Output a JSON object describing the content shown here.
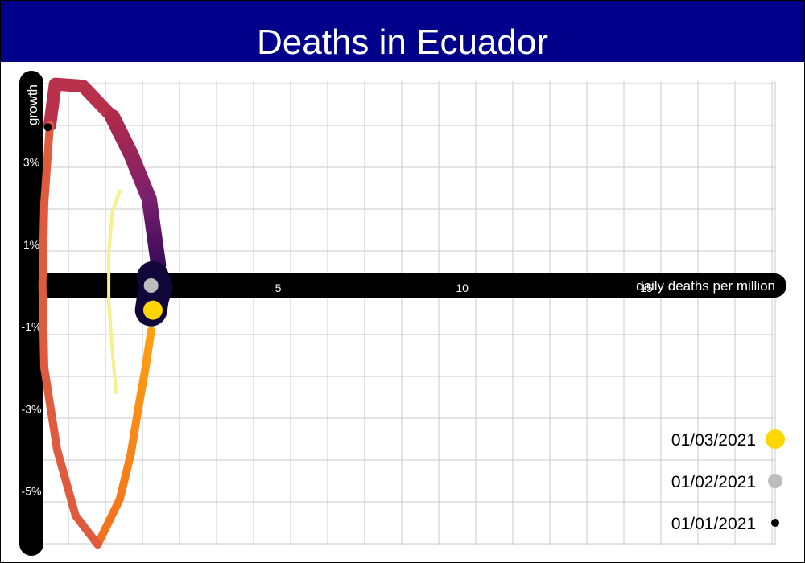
{
  "title": "Deaths in Ecuador",
  "chart_data": {
    "type": "scatter",
    "title": "Deaths in Ecuador",
    "xlabel": "daily deaths per million",
    "ylabel": "growth",
    "xlim": [
      -1.7,
      18.5
    ],
    "ylim": [
      -6.3,
      5.4
    ],
    "xticks": [
      {
        "value": 5,
        "label": "5"
      },
      {
        "value": 10,
        "label": "10"
      },
      {
        "value": 15,
        "label": "15"
      }
    ],
    "yticks": [
      {
        "value": 3,
        "label": "3%"
      },
      {
        "value": 1,
        "label": "1%"
      },
      {
        "value": -1,
        "label": "-1%"
      },
      {
        "value": -3,
        "label": "-3%"
      },
      {
        "value": -5,
        "label": "-5%"
      }
    ],
    "grid": true,
    "legend_position": "bottom-right",
    "series": [
      {
        "color": "#f5f18a",
        "points": [
          [
            0.7,
            2.3
          ],
          [
            0.5,
            1.8
          ],
          [
            0.4,
            0.8
          ],
          [
            0.4,
            -0.4
          ],
          [
            0.5,
            -1.6
          ],
          [
            0.6,
            -2.6
          ]
        ]
      },
      {
        "color": "#e05a3e",
        "points": [
          [
            -1.2,
            3.9
          ],
          [
            -1.05,
            4.9
          ],
          [
            -0.3,
            4.85
          ],
          [
            0.5,
            4.1
          ],
          [
            1.0,
            3.2
          ],
          [
            1.5,
            2.1
          ],
          [
            1.75,
            0.5
          ],
          [
            1.7,
            -0.5
          ],
          [
            1.55,
            -1.1
          ],
          [
            1.4,
            -2.0
          ],
          [
            1.2,
            -3.0
          ],
          [
            1.0,
            -4.1
          ],
          [
            0.7,
            -5.2
          ],
          [
            0.1,
            -6.3
          ],
          [
            -0.5,
            -5.6
          ],
          [
            -1.0,
            -4.0
          ],
          [
            -1.35,
            -2.0
          ],
          [
            -1.4,
            0.0
          ],
          [
            -1.35,
            2.0
          ],
          [
            -1.2,
            3.9
          ]
        ]
      },
      {
        "color": "#12073a",
        "points": [
          [
            1.6,
            0.2
          ],
          [
            1.7,
            -0.05
          ],
          [
            1.6,
            -0.3
          ],
          [
            1.55,
            -0.6
          ]
        ]
      }
    ],
    "highlights": [
      {
        "date": "01/03/2021",
        "color": "#ffd700",
        "x": 1.6,
        "y": -0.6
      },
      {
        "date": "01/02/2021",
        "color": "#bdbdbd",
        "x": 1.55,
        "y": 0.0
      },
      {
        "date": "01/01/2021",
        "color": "#000000",
        "x": -1.25,
        "y": 3.85
      }
    ],
    "legend": [
      {
        "label": "01/03/2021",
        "color": "#ffd700"
      },
      {
        "label": "01/02/2021",
        "color": "#bdbdbd"
      },
      {
        "label": "01/01/2021",
        "color": "#000000"
      }
    ]
  }
}
